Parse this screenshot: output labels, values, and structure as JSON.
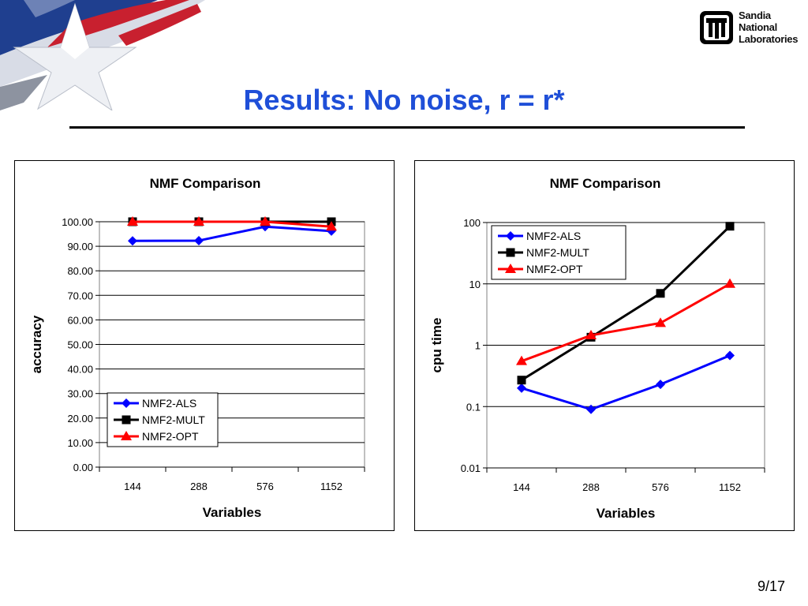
{
  "slide": {
    "title": "Results: No noise, r = r*",
    "page": "9/17",
    "logo_lines": [
      "Sandia",
      "National",
      "Laboratories"
    ]
  },
  "colors": {
    "title": "#1f4fd8",
    "als": "#0000ff",
    "mult": "#000000",
    "opt": "#ff0000"
  },
  "chart_data": [
    {
      "type": "line",
      "title": "NMF Comparison",
      "xlabel": "Variables",
      "ylabel": "accuracy",
      "categories": [
        "144",
        "288",
        "576",
        "1152"
      ],
      "yscale": "linear",
      "ylim": [
        0,
        100
      ],
      "yticks": [
        0,
        10,
        20,
        30,
        40,
        50,
        60,
        70,
        80,
        90,
        100
      ],
      "ytick_labels": [
        "0.00",
        "10.00",
        "20.00",
        "30.00",
        "40.00",
        "50.00",
        "60.00",
        "70.00",
        "80.00",
        "90.00",
        "100.00"
      ],
      "grid": true,
      "legend": "bottom-left",
      "series": [
        {
          "name": "NMF2-ALS",
          "values": [
            92.2,
            92.3,
            98.0,
            96.2
          ],
          "marker": "diamond",
          "color": "#0000ff"
        },
        {
          "name": "NMF2-MULT",
          "values": [
            100.0,
            100.0,
            100.0,
            100.0
          ],
          "marker": "square",
          "color": "#000000"
        },
        {
          "name": "NMF2-OPT",
          "values": [
            100.0,
            100.0,
            100.0,
            98.0
          ],
          "marker": "triangle",
          "color": "#ff0000"
        }
      ]
    },
    {
      "type": "line",
      "title": "NMF Comparison",
      "xlabel": "Variables",
      "ylabel": "cpu time",
      "categories": [
        "144",
        "288",
        "576",
        "1152"
      ],
      "yscale": "log",
      "ylim": [
        0.01,
        100
      ],
      "yticks": [
        0.01,
        0.1,
        1,
        10,
        100
      ],
      "ytick_labels": [
        "0.01",
        "0.1",
        "1",
        "10",
        "100"
      ],
      "grid": true,
      "legend": "top-left",
      "series": [
        {
          "name": "NMF2-ALS",
          "values": [
            0.2,
            0.09,
            0.23,
            0.68
          ],
          "marker": "diamond",
          "color": "#0000ff"
        },
        {
          "name": "NMF2-MULT",
          "values": [
            0.27,
            1.35,
            7.0,
            87.0
          ],
          "marker": "square",
          "color": "#000000"
        },
        {
          "name": "NMF2-OPT",
          "values": [
            0.55,
            1.45,
            2.3,
            10.0
          ],
          "marker": "triangle",
          "color": "#ff0000"
        }
      ]
    }
  ]
}
